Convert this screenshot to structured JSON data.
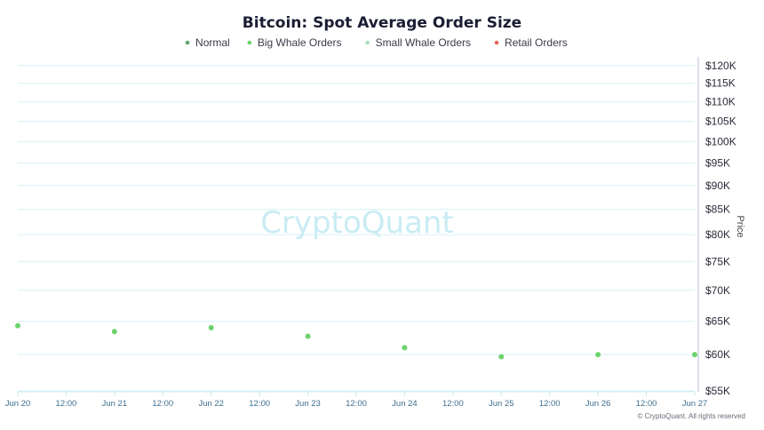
{
  "chart_data": {
    "type": "scatter",
    "title": "Bitcoin: Spot Average Order Size",
    "ylabel": "Price",
    "legend": {
      "placement": "top-center",
      "entries": [
        {
          "name": "Normal",
          "color": "#5aa86a"
        },
        {
          "name": "Big Whale Orders",
          "color": "#6cd36c"
        },
        {
          "name": "Small Whale Orders",
          "color": "#a9dfb8"
        },
        {
          "name": "Retail Orders",
          "color": "#e8665a"
        }
      ]
    },
    "x_ticks": [
      "Jun 20",
      "12:00",
      "Jun 21",
      "12:00",
      "Jun 22",
      "12:00",
      "Jun 23",
      "12:00",
      "Jun 24",
      "12:00",
      "Jun 25",
      "12:00",
      "Jun 26",
      "12:00",
      "Jun 27"
    ],
    "y_ticks": [
      "$120K",
      "$115K",
      "$110K",
      "$105K",
      "$100K",
      "$95K",
      "$90K",
      "$85K",
      "$80K",
      "$75K",
      "$70K",
      "$65K",
      "$60K",
      "$55K"
    ],
    "y_tick_values": [
      120000,
      115000,
      110000,
      105000,
      100000,
      95000,
      90000,
      85000,
      80000,
      75000,
      70000,
      65000,
      60000,
      55000
    ],
    "ylim": [
      55000,
      122000
    ],
    "y_scale": "log",
    "xlim": [
      0,
      7
    ],
    "grid": true,
    "series": [
      {
        "name": "Big Whale Orders",
        "color": "#6cd36c",
        "x": [
          0,
          1,
          2,
          3,
          4,
          5,
          6,
          7
        ],
        "y": [
          64300,
          63400,
          64000,
          62700,
          61000,
          59700,
          60000,
          60000
        ]
      }
    ],
    "watermark": "CryptoQuant",
    "copyright": "© CryptoQuant. All rights reserved"
  }
}
